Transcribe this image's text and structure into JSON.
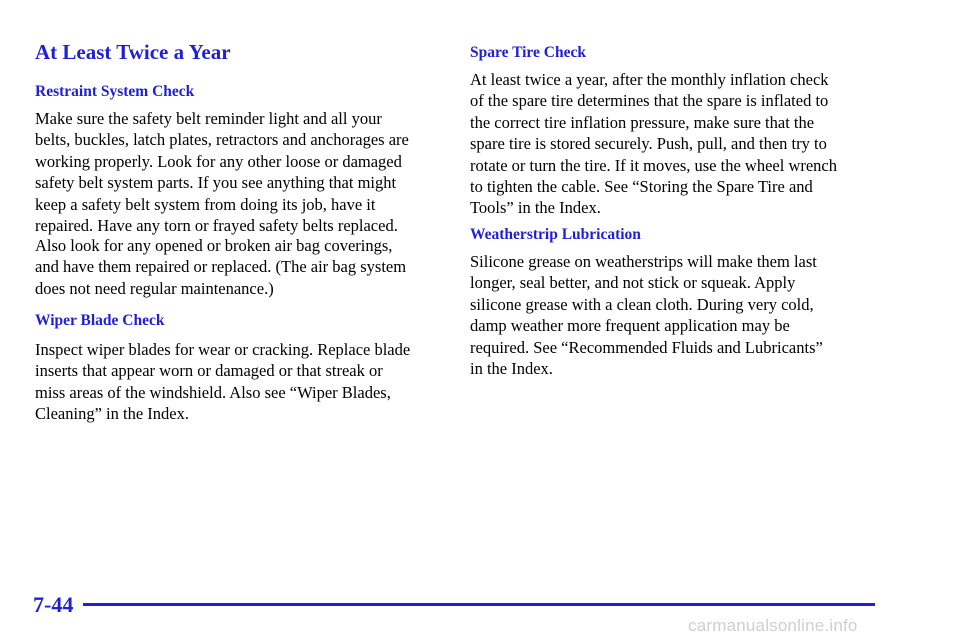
{
  "page": {
    "title": "At Least Twice a Year",
    "page_number": "7-44",
    "watermark": "carmanualsonline.info"
  },
  "left": {
    "restraint": {
      "heading": "Restraint System Check",
      "para1": [
        "Make sure the safety belt reminder light and all your",
        "belts, buckles, latch plates, retractors and anchorages are",
        "working properly. Look for any other loose or damaged",
        "safety belt system parts. If you see anything that might",
        "keep a safety belt system from doing its job, have it",
        "repaired. Have any torn or frayed safety belts replaced."
      ],
      "para2": [
        "Also look for any opened or broken air bag coverings,",
        "and have them repaired or replaced. (The air bag system",
        "does not need regular maintenance.)"
      ]
    },
    "wiper": {
      "heading": "Wiper Blade Check",
      "para": [
        "Inspect wiper blades for wear or cracking. Replace blade",
        "inserts that appear worn or damaged or that streak or",
        "miss areas of the windshield. Also see “Wiper Blades,",
        "Cleaning” in the Index."
      ]
    }
  },
  "right": {
    "spare": {
      "heading": "Spare Tire Check",
      "para": [
        "At least twice a year, after the monthly inflation check",
        "of the spare tire determines that the spare is inflated to",
        "the correct tire inflation pressure, make sure that the",
        "spare tire is stored securely. Push, pull, and then try to",
        "rotate or turn the tire. If it moves, use the wheel wrench",
        "to tighten the cable. See “Storing the Spare Tire and",
        "Tools” in the Index."
      ]
    },
    "weatherstrip": {
      "heading": "Weatherstrip Lubrication",
      "para": [
        "Silicone grease on weatherstrips will make them last",
        "longer, seal better, and not stick or squeak. Apply",
        "silicone grease with a clean cloth. During very cold,",
        "damp weather more frequent application may be",
        "required. See “Recommended Fluids and Lubricants”",
        "in the Index."
      ]
    }
  }
}
